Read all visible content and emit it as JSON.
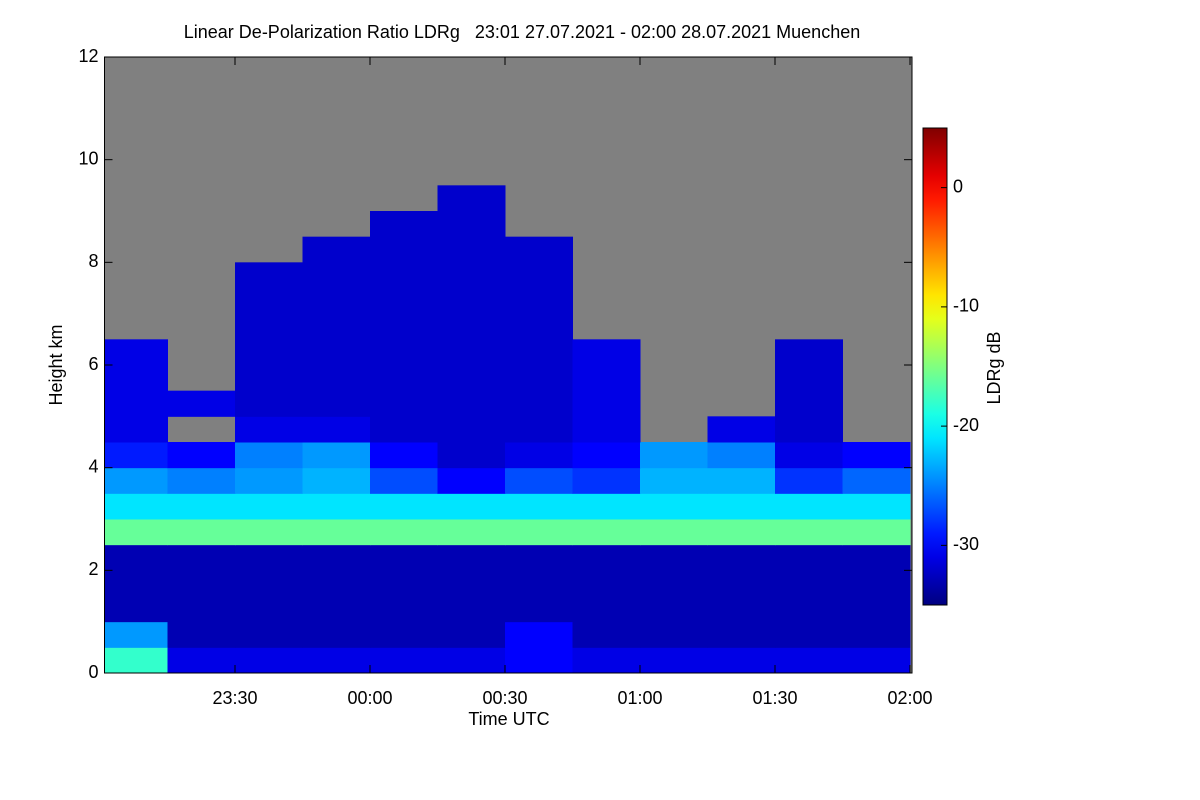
{
  "chart_data": {
    "type": "heatmap",
    "title": "Linear De-Polarization Ratio LDRg   23:01 27.07.2021 - 02:00 28.07.2021 Muenchen",
    "x_label": "Time UTC",
    "y_label": "Height km",
    "colorbar_label": "LDRg dB",
    "colormap": "jet",
    "missing_color": "#808080",
    "xlim": [
      1,
      180
    ],
    "ylim": [
      0,
      12
    ],
    "clim": [
      -35,
      5
    ],
    "xticks": [
      {
        "value": 30,
        "label": "23:30"
      },
      {
        "value": 60,
        "label": "00:00"
      },
      {
        "value": 90,
        "label": "00:30"
      },
      {
        "value": 120,
        "label": "01:00"
      },
      {
        "value": 150,
        "label": "01:30"
      },
      {
        "value": 180,
        "label": "02:00"
      }
    ],
    "yticks": [
      0,
      2,
      4,
      6,
      8,
      10,
      12
    ],
    "cticks": [
      0,
      -10,
      -20,
      -30
    ],
    "x_edges": [
      1,
      15,
      30,
      45,
      60,
      75,
      90,
      105,
      120,
      135,
      150,
      165,
      180
    ],
    "y_edges": [
      0,
      0.5,
      1,
      1.5,
      2,
      2.5,
      3,
      3.5,
      4,
      4.5,
      5,
      5.5,
      6,
      6.5,
      7,
      7.5,
      8,
      8.5,
      9,
      9.5
    ],
    "z": [
      [
        -18,
        -31,
        -31,
        -31,
        -31,
        -31,
        -30,
        -31,
        -31,
        -31,
        -31,
        -31
      ],
      [
        -24,
        -33,
        -33,
        -33,
        -33,
        -33,
        -30,
        -33,
        -33,
        -33,
        -33,
        -33
      ],
      [
        -33,
        -33,
        -33,
        -33,
        -33,
        -33,
        -33,
        -33,
        -33,
        -33,
        -33,
        -33
      ],
      [
        -33,
        -33,
        -33,
        -33,
        -33,
        -33,
        -33,
        -33,
        -33,
        -33,
        -33,
        -33
      ],
      [
        -33,
        -33,
        -33,
        -33,
        -33,
        -33,
        -33,
        -33,
        -33,
        -33,
        -33,
        -33
      ],
      [
        -16,
        -16,
        -16,
        -16,
        -16,
        -16,
        -16,
        -16,
        -16,
        -16,
        -16,
        -16
      ],
      [
        -21,
        -21,
        -21,
        -21,
        -21,
        -21,
        -21,
        -21,
        -21,
        -21,
        -21,
        -21
      ],
      [
        -24,
        -25,
        -24,
        -23,
        -27,
        -30,
        -27,
        -28,
        -23,
        -23,
        -28,
        -26
      ],
      [
        -29,
        -30,
        -25,
        -24,
        -30,
        -32,
        -31,
        -30,
        -24,
        -25,
        -31,
        -30
      ],
      [
        -31,
        null,
        -31,
        -31,
        -32,
        -32,
        -32,
        -31,
        null,
        -31,
        -32,
        null
      ],
      [
        -31,
        -31,
        -32,
        -32,
        -32,
        -32,
        -32,
        -31,
        null,
        null,
        -32,
        null
      ],
      [
        -31,
        null,
        -32,
        -32,
        -32,
        -32,
        -32,
        -31,
        null,
        null,
        -32,
        null
      ],
      [
        -31,
        null,
        -32,
        -32,
        -32,
        -32,
        -32,
        -31,
        null,
        null,
        -32,
        null
      ],
      [
        null,
        null,
        -32,
        -32,
        -32,
        -32,
        -32,
        null,
        null,
        null,
        null,
        null
      ],
      [
        null,
        null,
        -32,
        -32,
        -32,
        -32,
        -32,
        null,
        null,
        null,
        null,
        null
      ],
      [
        null,
        null,
        -32,
        -32,
        -32,
        -32,
        -32,
        null,
        null,
        null,
        null,
        null
      ],
      [
        null,
        null,
        null,
        -32,
        -32,
        -32,
        -32,
        null,
        null,
        null,
        null,
        null
      ],
      [
        null,
        null,
        null,
        null,
        -32,
        -32,
        null,
        null,
        null,
        null,
        null,
        null
      ],
      [
        null,
        null,
        null,
        null,
        null,
        -32,
        null,
        null,
        null,
        null,
        null,
        null
      ]
    ]
  }
}
